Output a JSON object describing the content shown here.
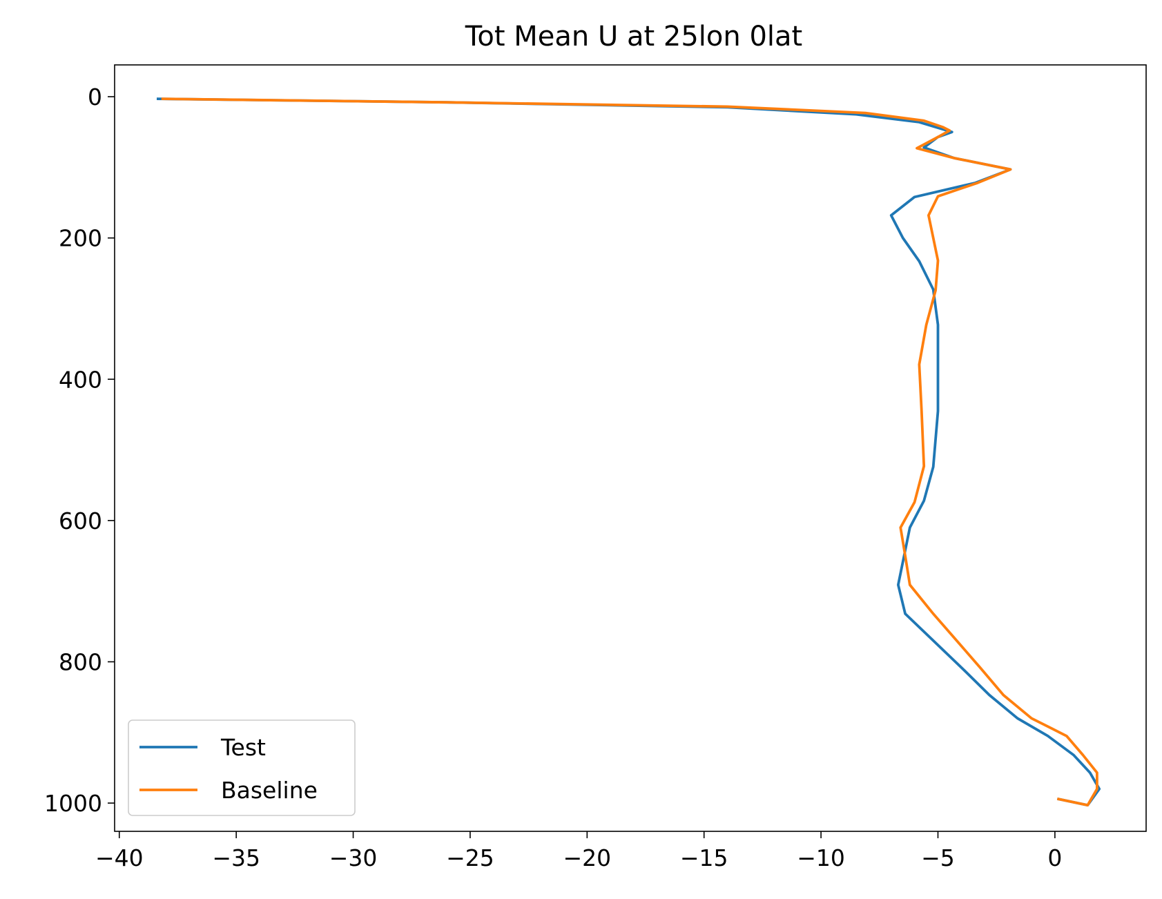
{
  "chart_data": {
    "type": "line",
    "title": "Tot Mean U at 25lon 0lat",
    "xlabel": "",
    "ylabel": "",
    "xlim": [
      -40.2,
      3.9
    ],
    "ylim": [
      1040,
      -45
    ],
    "y_inverted": true,
    "xticks": [
      -40,
      -35,
      -30,
      -25,
      -20,
      -15,
      -10,
      -5,
      0
    ],
    "xtick_labels": [
      "−40",
      "−35",
      "−30",
      "−25",
      "−20",
      "−15",
      "−10",
      "−5",
      "0"
    ],
    "yticks": [
      0,
      200,
      400,
      600,
      800,
      1000
    ],
    "ytick_labels": [
      "0",
      "200",
      "400",
      "600",
      "800",
      "1000"
    ],
    "grid": false,
    "legend_position": "lower-left",
    "series": [
      {
        "name": "Test",
        "color": "#1f77b4",
        "x": [
          -38.4,
          -26.0,
          -14.0,
          -8.5,
          -5.8,
          -4.4,
          -5.0,
          -5.6,
          -4.3,
          -1.9,
          -3.4,
          -6.0,
          -7.0,
          -6.5,
          -5.8,
          -5.2,
          -5.0,
          -5.0,
          -5.0,
          -5.2,
          -5.6,
          -6.2,
          -6.7,
          -6.4,
          -5.2,
          -4.0,
          -2.8,
          -1.6,
          -0.3,
          0.8,
          1.5,
          1.9,
          1.4,
          0.1
        ],
        "y": [
          3,
          8,
          15,
          25,
          36,
          50,
          57,
          72,
          87,
          103,
          122,
          142,
          168,
          200,
          233,
          273,
          323,
          380,
          445,
          524,
          572,
          610,
          691,
          732,
          770,
          808,
          847,
          880,
          905,
          932,
          957,
          980,
          1003,
          994
        ]
      },
      {
        "name": "Baseline",
        "color": "#ff7f0e",
        "x": [
          -38.2,
          -26.0,
          -14.0,
          -8.1,
          -5.6,
          -4.8,
          -4.5,
          -5.0,
          -5.9,
          -4.3,
          -1.9,
          -3.3,
          -5.0,
          -5.4,
          -5.2,
          -5.0,
          -5.1,
          -5.5,
          -5.8,
          -5.7,
          -5.6,
          -6.0,
          -6.6,
          -6.4,
          -6.2,
          -5.2,
          -4.2,
          -3.2,
          -2.2,
          -1.0,
          0.5,
          1.2,
          1.8,
          1.8,
          1.4,
          0.1
        ],
        "y": [
          3,
          8,
          14,
          23,
          34,
          43,
          48,
          57,
          73,
          87,
          103,
          122,
          141,
          168,
          200,
          232,
          274,
          323,
          379,
          445,
          523,
          574,
          610,
          650,
          691,
          732,
          770,
          808,
          847,
          880,
          905,
          932,
          957,
          980,
          1003,
          994
        ]
      }
    ]
  }
}
